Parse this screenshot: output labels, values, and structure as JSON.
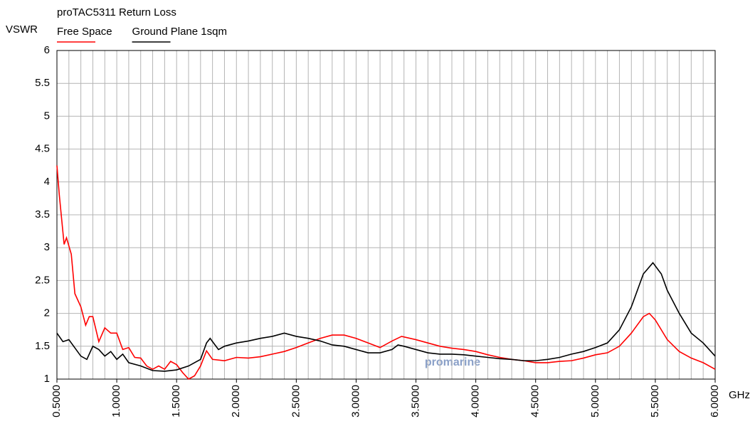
{
  "chart_data": {
    "type": "line",
    "title": "proTAC5311 Return Loss",
    "y_label": "VSWR",
    "x_label": "GHz",
    "annotation": "promarine",
    "xlim": [
      0.5,
      6.0
    ],
    "ylim": [
      1,
      6
    ],
    "yticks": [
      1,
      1.5,
      2,
      2.5,
      3,
      3.5,
      4,
      4.5,
      5,
      5.5,
      6
    ],
    "xticks": [
      {
        "value": 0.5,
        "label": "0.5000"
      },
      {
        "value": 1.0,
        "label": "1.0000"
      },
      {
        "value": 1.5,
        "label": "1.5000"
      },
      {
        "value": 2.0,
        "label": "2.0000"
      },
      {
        "value": 2.5,
        "label": "2.5000"
      },
      {
        "value": 3.0,
        "label": "3.0000"
      },
      {
        "value": 3.5,
        "label": "3.5000"
      },
      {
        "value": 4.0,
        "label": "4.0000"
      },
      {
        "value": 4.5,
        "label": "4.5000"
      },
      {
        "value": 5.0,
        "label": "5.0000"
      },
      {
        "value": 5.5,
        "label": "5.5000"
      },
      {
        "value": 6.0,
        "label": "6.0000"
      }
    ],
    "x_grid": [
      0.5,
      0.6,
      0.7,
      0.8,
      0.9,
      1.0,
      1.1,
      1.2,
      1.3,
      1.4,
      1.5,
      1.6,
      1.7,
      1.8,
      1.9,
      2.0,
      2.1,
      2.2,
      2.3,
      2.4,
      2.5,
      2.6,
      2.7,
      2.8,
      2.9,
      3.0,
      3.1,
      3.2,
      3.3,
      3.4,
      3.5,
      3.6,
      3.7,
      3.8,
      3.9,
      4.0,
      4.1,
      4.2,
      4.3,
      4.4,
      4.5,
      4.6,
      4.7,
      4.8,
      4.9,
      5.0,
      5.1,
      5.2,
      5.3,
      5.4,
      5.5,
      5.6,
      5.7,
      5.8,
      5.9,
      6.0
    ],
    "grid": true,
    "series": [
      {
        "name": "Free Space",
        "color": "#ff0000",
        "x": [
          0.5,
          0.52,
          0.56,
          0.58,
          0.62,
          0.65,
          0.7,
          0.74,
          0.77,
          0.8,
          0.85,
          0.9,
          0.95,
          1.0,
          1.05,
          1.1,
          1.15,
          1.2,
          1.25,
          1.3,
          1.35,
          1.4,
          1.45,
          1.5,
          1.55,
          1.6,
          1.65,
          1.7,
          1.75,
          1.8,
          1.9,
          2.0,
          2.1,
          2.2,
          2.3,
          2.4,
          2.5,
          2.6,
          2.7,
          2.8,
          2.9,
          3.0,
          3.1,
          3.2,
          3.3,
          3.38,
          3.5,
          3.6,
          3.7,
          3.8,
          3.9,
          4.0,
          4.1,
          4.2,
          4.3,
          4.4,
          4.5,
          4.6,
          4.7,
          4.8,
          4.9,
          5.0,
          5.1,
          5.2,
          5.3,
          5.4,
          5.45,
          5.5,
          5.6,
          5.7,
          5.8,
          5.9,
          6.0
        ],
        "values": [
          4.25,
          3.8,
          3.05,
          3.15,
          2.9,
          2.3,
          2.1,
          1.82,
          1.95,
          1.95,
          1.57,
          1.78,
          1.7,
          1.7,
          1.45,
          1.48,
          1.33,
          1.32,
          1.2,
          1.15,
          1.2,
          1.15,
          1.27,
          1.22,
          1.1,
          1.0,
          1.05,
          1.2,
          1.43,
          1.3,
          1.28,
          1.33,
          1.32,
          1.34,
          1.38,
          1.42,
          1.48,
          1.55,
          1.62,
          1.67,
          1.67,
          1.62,
          1.55,
          1.48,
          1.58,
          1.65,
          1.6,
          1.55,
          1.5,
          1.47,
          1.45,
          1.42,
          1.37,
          1.33,
          1.3,
          1.28,
          1.25,
          1.25,
          1.27,
          1.28,
          1.32,
          1.37,
          1.4,
          1.5,
          1.7,
          1.95,
          2.0,
          1.9,
          1.6,
          1.42,
          1.32,
          1.25,
          1.15
        ]
      },
      {
        "name": "Ground Plane 1sqm",
        "color": "#000000",
        "x": [
          0.5,
          0.55,
          0.6,
          0.7,
          0.75,
          0.8,
          0.85,
          0.9,
          0.95,
          1.0,
          1.05,
          1.1,
          1.2,
          1.3,
          1.4,
          1.5,
          1.6,
          1.7,
          1.75,
          1.78,
          1.85,
          1.9,
          2.0,
          2.1,
          2.2,
          2.3,
          2.4,
          2.5,
          2.6,
          2.7,
          2.8,
          2.9,
          3.0,
          3.1,
          3.2,
          3.3,
          3.35,
          3.4,
          3.5,
          3.6,
          3.7,
          3.8,
          3.9,
          4.0,
          4.1,
          4.2,
          4.3,
          4.4,
          4.5,
          4.6,
          4.7,
          4.8,
          4.9,
          5.0,
          5.1,
          5.2,
          5.3,
          5.4,
          5.48,
          5.55,
          5.6,
          5.7,
          5.8,
          5.9,
          6.0
        ],
        "values": [
          1.7,
          1.57,
          1.6,
          1.35,
          1.3,
          1.5,
          1.45,
          1.35,
          1.42,
          1.3,
          1.38,
          1.25,
          1.2,
          1.13,
          1.12,
          1.14,
          1.2,
          1.3,
          1.55,
          1.62,
          1.45,
          1.5,
          1.55,
          1.58,
          1.62,
          1.65,
          1.7,
          1.65,
          1.62,
          1.58,
          1.52,
          1.5,
          1.45,
          1.4,
          1.4,
          1.45,
          1.52,
          1.5,
          1.45,
          1.4,
          1.38,
          1.38,
          1.37,
          1.35,
          1.33,
          1.31,
          1.3,
          1.28,
          1.28,
          1.3,
          1.33,
          1.38,
          1.42,
          1.48,
          1.55,
          1.75,
          2.1,
          2.6,
          2.77,
          2.6,
          2.35,
          2.0,
          1.7,
          1.55,
          1.35
        ]
      }
    ]
  }
}
